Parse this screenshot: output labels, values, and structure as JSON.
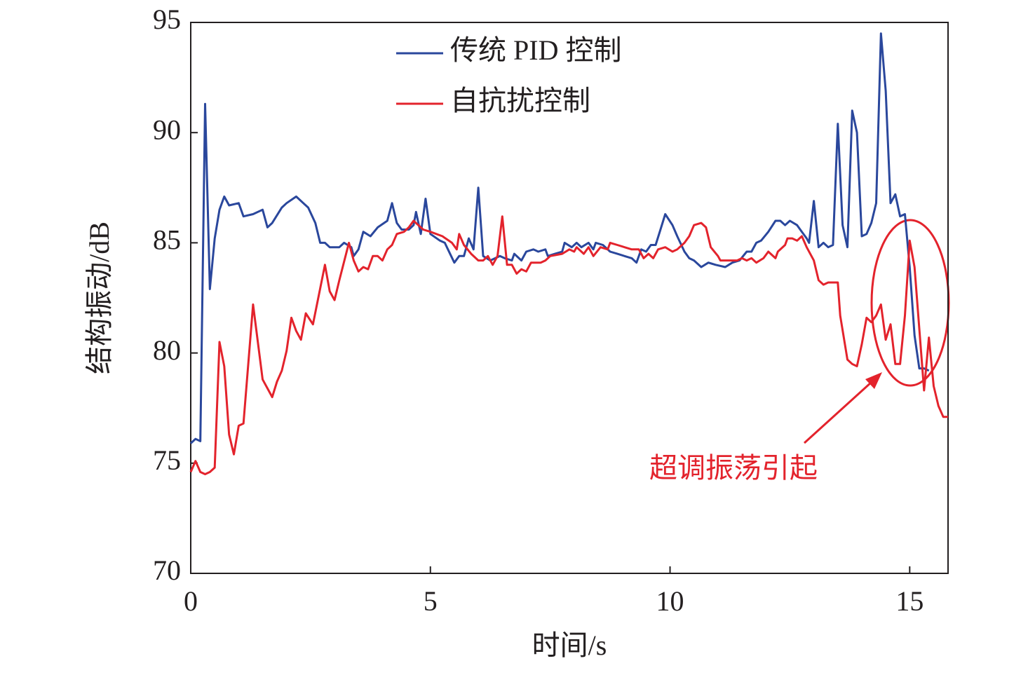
{
  "chart_data": {
    "type": "line",
    "xlabel": "时间/s",
    "ylabel": "结构振动/dB",
    "annotation": "超调振荡引起",
    "xlim": [
      0,
      15.8
    ],
    "xticks": [
      0,
      5,
      10,
      15
    ],
    "ylim": [
      70,
      95
    ],
    "yticks": [
      70,
      75,
      80,
      85,
      90,
      95
    ],
    "legend": "top",
    "series": [
      {
        "name": "传统 PID 控制",
        "color": "#2a479c",
        "x": [
          0,
          0.1,
          0.2,
          0.3,
          0.4,
          0.5,
          0.6,
          0.7,
          0.8,
          1.0,
          1.1,
          1.3,
          1.5,
          1.6,
          1.7,
          1.9,
          2.0,
          2.2,
          2.35,
          2.45,
          2.6,
          2.7,
          2.8,
          2.9,
          3.1,
          3.2,
          3.35,
          3.4,
          3.5,
          3.6,
          3.75,
          3.9,
          4.1,
          4.2,
          4.3,
          4.4,
          4.55,
          4.65,
          4.7,
          4.8,
          4.9,
          5.0,
          5.2,
          5.3,
          5.5,
          5.6,
          5.7,
          5.8,
          5.9,
          6.0,
          6.1,
          6.25,
          6.45,
          6.55,
          6.7,
          6.75,
          6.9,
          7.0,
          7.15,
          7.25,
          7.4,
          7.45,
          7.6,
          7.75,
          7.8,
          7.95,
          8.05,
          8.15,
          8.3,
          8.4,
          8.45,
          8.6,
          8.75,
          8.9,
          9.05,
          9.2,
          9.3,
          9.4,
          9.5,
          9.6,
          9.7,
          9.8,
          9.9,
          10.05,
          10.15,
          10.3,
          10.4,
          10.5,
          10.65,
          10.8,
          10.95,
          11.15,
          11.3,
          11.45,
          11.6,
          11.7,
          11.8,
          11.9,
          12.05,
          12.2,
          12.3,
          12.4,
          12.5,
          12.65,
          12.75,
          12.85,
          12.9,
          13.0,
          13.1,
          13.2,
          13.3,
          13.4,
          13.5,
          13.6,
          13.7,
          13.8,
          13.9,
          14.0,
          14.1,
          14.2,
          14.3,
          14.4,
          14.5,
          14.6,
          14.7,
          14.8,
          14.9,
          15.0,
          15.1,
          15.2,
          15.3,
          15.4
        ],
        "values": [
          75.9,
          76.1,
          76.0,
          91.3,
          82.9,
          85.2,
          86.5,
          87.1,
          86.7,
          86.8,
          86.2,
          86.3,
          86.5,
          85.7,
          85.9,
          86.6,
          86.8,
          87.1,
          86.8,
          86.6,
          85.9,
          85.0,
          85.0,
          84.8,
          84.8,
          85.0,
          84.8,
          84.4,
          84.7,
          85.5,
          85.3,
          85.7,
          86.0,
          86.8,
          85.9,
          85.6,
          85.6,
          85.8,
          86.4,
          85.4,
          87.0,
          85.4,
          85.1,
          85.0,
          84.1,
          84.4,
          84.4,
          85.2,
          84.7,
          87.5,
          84.4,
          84.2,
          84.4,
          84.3,
          84.2,
          84.5,
          84.2,
          84.6,
          84.7,
          84.6,
          84.7,
          84.4,
          84.5,
          84.6,
          85.0,
          84.8,
          85.0,
          84.8,
          85.0,
          84.7,
          85.0,
          84.9,
          84.6,
          84.5,
          84.4,
          84.3,
          84.1,
          84.7,
          84.6,
          84.9,
          84.9,
          85.6,
          86.3,
          85.8,
          85.3,
          84.6,
          84.3,
          84.2,
          83.9,
          84.1,
          84.0,
          83.9,
          84.1,
          84.2,
          84.6,
          84.6,
          85.0,
          85.1,
          85.5,
          86.0,
          86.0,
          85.8,
          86.0,
          85.8,
          85.5,
          85.2,
          85.0,
          86.9,
          84.8,
          85.0,
          84.8,
          84.9,
          90.4,
          85.8,
          84.8,
          91.0,
          90.0,
          85.3,
          85.4,
          85.9,
          86.8,
          94.5,
          91.9,
          86.8,
          87.2,
          86.2,
          86.3,
          83.9,
          80.8,
          79.3,
          79.3,
          79.2
        ]
      },
      {
        "name": "自抗扰控制",
        "color": "#e3232c",
        "x": [
          0,
          0.1,
          0.2,
          0.3,
          0.4,
          0.5,
          0.6,
          0.7,
          0.8,
          0.9,
          1.0,
          1.1,
          1.3,
          1.5,
          1.7,
          1.8,
          1.9,
          2.0,
          2.1,
          2.2,
          2.3,
          2.4,
          2.55,
          2.8,
          2.9,
          3.0,
          3.1,
          3.3,
          3.4,
          3.5,
          3.6,
          3.7,
          3.8,
          3.9,
          4.0,
          4.1,
          4.2,
          4.3,
          4.45,
          4.55,
          4.65,
          4.75,
          4.85,
          5.0,
          5.25,
          5.45,
          5.55,
          5.6,
          5.7,
          5.85,
          6.0,
          6.1,
          6.2,
          6.3,
          6.4,
          6.5,
          6.6,
          6.7,
          6.8,
          6.9,
          7.0,
          7.1,
          7.3,
          7.4,
          7.5,
          7.75,
          7.9,
          8.0,
          8.05,
          8.2,
          8.3,
          8.4,
          8.55,
          8.7,
          8.75,
          8.9,
          9.2,
          9.35,
          9.45,
          9.55,
          9.65,
          9.75,
          9.9,
          10.05,
          10.15,
          10.3,
          10.4,
          10.5,
          10.65,
          10.75,
          10.85,
          11.0,
          11.05,
          11.4,
          11.5,
          11.6,
          11.7,
          11.8,
          11.95,
          12.05,
          12.2,
          12.25,
          12.4,
          12.45,
          12.55,
          12.65,
          12.75,
          12.85,
          13.0,
          13.1,
          13.2,
          13.3,
          13.5,
          13.55,
          13.7,
          13.8,
          13.9,
          14.0,
          14.1,
          14.2,
          14.3,
          14.4,
          14.5,
          14.6,
          14.7,
          14.8,
          14.9,
          15.0,
          15.1,
          15.2,
          15.3,
          15.4,
          15.5,
          15.6,
          15.7,
          15.8
        ],
        "values": [
          74.6,
          75.1,
          74.6,
          74.5,
          74.6,
          74.8,
          80.5,
          79.4,
          76.3,
          75.4,
          76.7,
          76.8,
          82.2,
          78.8,
          78.0,
          78.7,
          79.2,
          80.1,
          81.6,
          81.0,
          80.6,
          81.8,
          81.3,
          84.0,
          82.8,
          82.4,
          83.3,
          85.0,
          84.2,
          83.7,
          83.9,
          83.8,
          84.4,
          84.4,
          84.2,
          84.7,
          84.9,
          85.4,
          85.5,
          85.7,
          86.0,
          85.8,
          85.6,
          85.5,
          85.3,
          85.0,
          84.7,
          85.4,
          84.9,
          84.5,
          84.2,
          84.2,
          84.4,
          84.0,
          84.4,
          86.2,
          84.0,
          84.0,
          83.6,
          83.8,
          83.7,
          84.1,
          84.1,
          84.2,
          84.4,
          84.5,
          84.7,
          84.6,
          84.8,
          84.5,
          84.8,
          84.4,
          84.8,
          84.7,
          85.0,
          84.9,
          84.7,
          84.7,
          84.3,
          84.5,
          84.3,
          84.7,
          84.8,
          84.6,
          84.7,
          85.0,
          85.3,
          85.8,
          85.9,
          85.7,
          84.8,
          84.4,
          84.2,
          84.2,
          84.3,
          84.2,
          84.3,
          84.1,
          84.3,
          84.6,
          84.3,
          84.6,
          84.9,
          85.2,
          85.2,
          85.1,
          85.3,
          84.8,
          84.2,
          83.3,
          83.1,
          83.2,
          83.2,
          81.7,
          79.7,
          79.5,
          79.4,
          80.4,
          81.6,
          81.4,
          81.7,
          82.2,
          80.6,
          81.3,
          79.5,
          79.5,
          81.7,
          85.1,
          83.9,
          81.1,
          78.3,
          80.7,
          78.5,
          77.6,
          77.1,
          77.1
        ]
      }
    ]
  }
}
